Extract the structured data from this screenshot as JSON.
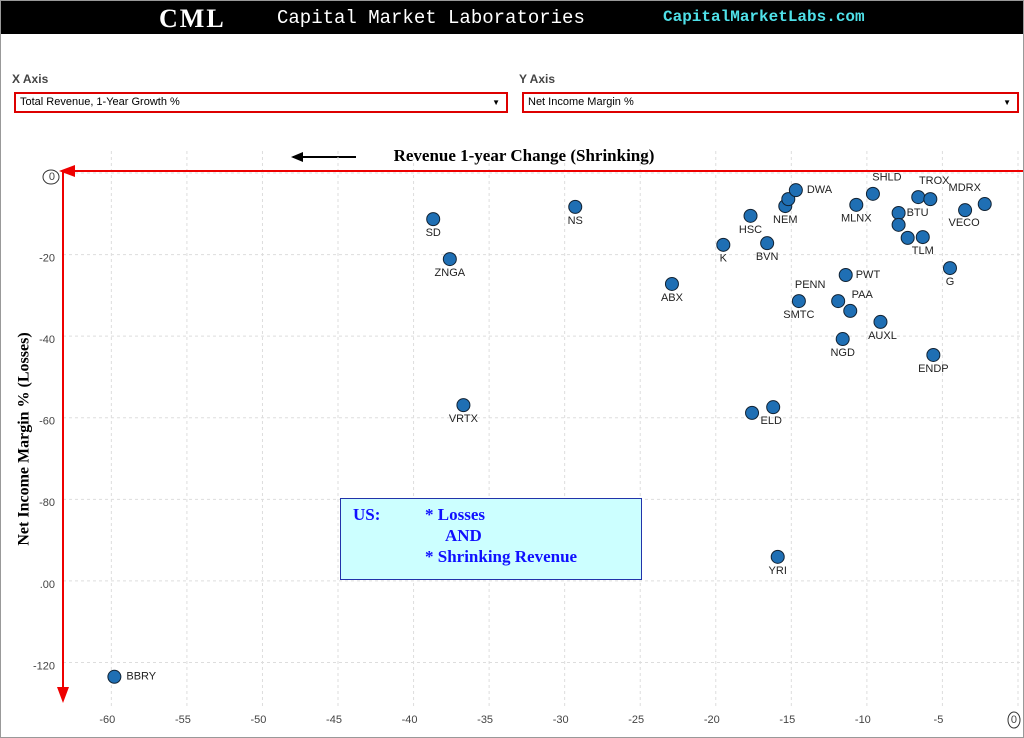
{
  "header": {
    "logo": "CML",
    "name": "Capital Market Laboratories",
    "url": "CapitalMarketLabs.com"
  },
  "controls": {
    "x_label": "X Axis",
    "x_value": "Total Revenue, 1-Year Growth %",
    "y_label": "Y Axis",
    "y_value": "Net Income Margin %"
  },
  "chart_data": {
    "type": "scatter",
    "x_axis_annotation": "Revenue 1-year Change (Shrinking)",
    "y_axis_label": "Net Income Margin % (Losses)",
    "annotation": [
      "US:",
      "* Losses",
      "AND",
      "* Shrinking Revenue"
    ],
    "color": "#1f6fb4",
    "labels": [
      "BBRY",
      "SD",
      "ZNGA",
      "NS",
      "VRTX",
      "ABX",
      "K",
      "HSC",
      "NEM",
      null,
      "DWA",
      "BVN",
      "ELD",
      null,
      "YRI",
      "SMTC",
      "PENN",
      "PAA",
      "PWT",
      "NGD",
      "AUXL",
      "MLNX",
      "SHLD",
      "BTU",
      null,
      null,
      "TLM",
      "TROX",
      null,
      "VECO",
      "MDRX",
      "G",
      "ENDP"
    ],
    "x": [
      -59.8,
      -38.7,
      -37.6,
      -29.3,
      -36.7,
      -22.9,
      -19.5,
      -17.7,
      -15.4,
      -15.2,
      -14.7,
      -16.6,
      -16.2,
      -17.6,
      -15.9,
      -14.5,
      -11.9,
      -11.1,
      -11.4,
      -11.6,
      -9.1,
      -10.7,
      -9.6,
      -7.9,
      -7.9,
      -7.3,
      -6.3,
      -6.6,
      -5.8,
      -3.5,
      -2.2,
      -4.5,
      -5.6
    ],
    "values": [
      -123.5,
      -11.3,
      -21.1,
      -8.3,
      -56.9,
      -27.2,
      -17.6,
      -10.5,
      -8.1,
      -6.4,
      -4.2,
      -17.2,
      -57.4,
      -58.8,
      -94.1,
      -31.4,
      -31.4,
      -33.8,
      -25.0,
      -40.7,
      -36.5,
      -7.8,
      -5.1,
      -9.8,
      -12.7,
      -15.9,
      -15.7,
      -5.9,
      -6.4,
      -9.1,
      -7.6,
      -23.3,
      -44.6
    ],
    "xlim": [
      -63.2,
      0.2
    ],
    "ylim": [
      -131.4,
      5.4
    ],
    "xticks": [
      -60,
      -55,
      -50,
      -45,
      -40,
      -35,
      -30,
      -25,
      -20,
      -15,
      -10,
      -5,
      0
    ],
    "yticks": [
      0,
      -20,
      -40,
      -60,
      -80,
      {
        "value": -100,
        "label": ".00"
      },
      -120
    ],
    "grid": true
  }
}
